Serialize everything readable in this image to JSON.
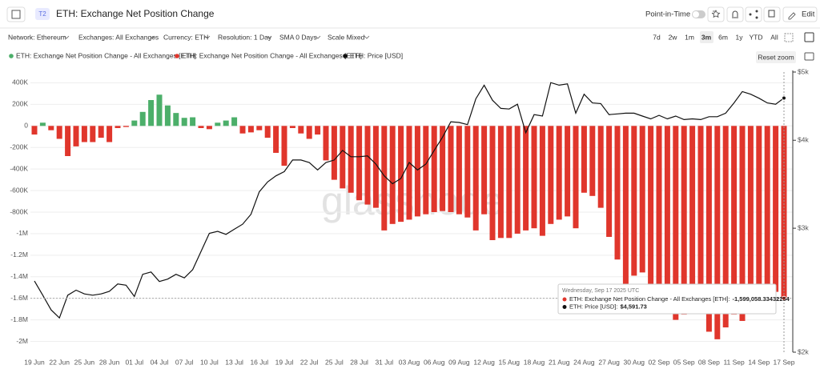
{
  "header": {
    "badge": "T2",
    "title": "ETH: Exchange Net Position Change",
    "point_in_time": "Point-in-Time",
    "edit": "Edit"
  },
  "filters": [
    "Network: Ethereum",
    "Exchanges: All Exchanges",
    "Currency: ETH",
    "Resolution: 1 Day",
    "SMA 0 Days",
    "Scale Mixed"
  ],
  "ranges": [
    "7d",
    "2w",
    "1m",
    "3m",
    "6m",
    "1y",
    "YTD",
    "All"
  ],
  "reset_zoom": "Reset zoom",
  "chart_data": {
    "type": "bar",
    "watermark": "glassnode",
    "categories": [
      "19 Jun",
      null,
      null,
      "22 Jun",
      null,
      null,
      "25 Jun",
      null,
      null,
      "28 Jun",
      null,
      null,
      "01 Jul",
      null,
      null,
      "04 Jul",
      null,
      null,
      "07 Jul",
      null,
      null,
      "10 Jul",
      null,
      null,
      "13 Jul",
      null,
      null,
      "16 Jul",
      null,
      null,
      "19 Jul",
      null,
      null,
      "22 Jul",
      null,
      null,
      "25 Jul",
      null,
      null,
      "28 Jul",
      null,
      null,
      "31 Jul",
      null,
      null,
      "03 Aug",
      null,
      null,
      "06 Aug",
      null,
      null,
      "09 Aug",
      null,
      null,
      "12 Aug",
      null,
      null,
      "15 Aug",
      null,
      null,
      "18 Aug",
      null,
      null,
      "21 Aug",
      null,
      null,
      "24 Aug",
      null,
      null,
      "27 Aug",
      null,
      null,
      "30 Aug",
      null,
      null,
      "02 Sep",
      null,
      null,
      "05 Sep",
      null,
      null,
      "08 Sep",
      null,
      null,
      "11 Sep",
      null,
      null,
      "14 Sep",
      null,
      null,
      "17 Sep"
    ],
    "series": [
      {
        "name": "ETH: Exchange Net Position Change - All Exchanges [ETH]",
        "type": "bar",
        "color": "#4caf6a",
        "values": [
          null,
          30000,
          null,
          null,
          null,
          null,
          null,
          null,
          null,
          null,
          null,
          null,
          50000,
          130000,
          240000,
          290000,
          190000,
          120000,
          75000,
          80000,
          null,
          null,
          30000,
          50000,
          80000,
          null,
          null,
          null,
          null,
          null,
          null,
          null,
          null,
          null,
          null,
          null,
          null,
          null,
          null,
          null,
          null,
          null,
          null,
          null,
          null,
          null,
          null,
          null,
          null,
          null,
          null,
          null,
          null,
          null,
          null,
          null,
          null,
          null,
          null,
          null,
          null,
          null,
          null,
          null,
          null,
          null,
          null,
          null,
          null,
          null,
          null,
          null,
          null,
          null,
          null,
          null,
          null,
          null,
          null,
          null,
          null,
          null,
          null,
          null,
          null,
          null,
          null,
          null,
          null,
          null,
          null
        ]
      },
      {
        "name": "ETH: Exchange Net Position Change - All Exchanges [ETH]",
        "type": "bar",
        "color": "#e0362c",
        "values": [
          -80000,
          null,
          -40000,
          -120000,
          -280000,
          -190000,
          -150000,
          -150000,
          -110000,
          -150000,
          -20000,
          -10000,
          null,
          null,
          null,
          null,
          null,
          null,
          null,
          null,
          -20000,
          -30000,
          null,
          null,
          null,
          -70000,
          -60000,
          -40000,
          -110000,
          -250000,
          -370000,
          -20000,
          -70000,
          -120000,
          -80000,
          -320000,
          -500000,
          -580000,
          -620000,
          -690000,
          -730000,
          -760000,
          -970000,
          -910000,
          -890000,
          -870000,
          -840000,
          -820000,
          -800000,
          -790000,
          -800000,
          -820000,
          -850000,
          -970000,
          -820000,
          -1060000,
          -1040000,
          -1040000,
          -1000000,
          -970000,
          -950000,
          -1020000,
          -910000,
          -870000,
          -840000,
          -950000,
          -620000,
          -650000,
          -760000,
          -1030000,
          -1240000,
          -1470000,
          -1390000,
          -1360000,
          -1470000,
          -1480000,
          -1500000,
          -1800000,
          -1750000,
          -1730000,
          -1740000,
          -1910000,
          -1980000,
          -1870000,
          -1750000,
          -1810000,
          -1690000,
          -1580000,
          -1540000,
          -1540000,
          -1599058.33432254
        ]
      },
      {
        "name": "ETH: Price [USD]",
        "type": "line",
        "axis": "y2",
        "color": "#111111",
        "values": [
          2524,
          2410,
          2297,
          2237,
          2410,
          2450,
          2420,
          2410,
          2420,
          2440,
          2500,
          2490,
          2400,
          2580,
          2600,
          2520,
          2540,
          2580,
          2550,
          2620,
          2780,
          2950,
          2970,
          2940,
          2990,
          3040,
          3140,
          3380,
          3490,
          3560,
          3610,
          3750,
          3750,
          3720,
          3630,
          3720,
          3750,
          3870,
          3790,
          3790,
          3800,
          3700,
          3560,
          3470,
          3530,
          3720,
          3630,
          3700,
          3870,
          4040,
          4250,
          4240,
          4210,
          4580,
          4790,
          4560,
          4440,
          4430,
          4500,
          4100,
          4350,
          4330,
          4830,
          4790,
          4810,
          4370,
          4650,
          4520,
          4510,
          4350,
          4360,
          4370,
          4370,
          4330,
          4290,
          4340,
          4290,
          4330,
          4280,
          4290,
          4280,
          4320,
          4320,
          4370,
          4520,
          4690,
          4650,
          4590,
          4520,
          4500,
          4591.73
        ]
      }
    ],
    "ylim": [
      -2100000,
      500000
    ],
    "yticks": [
      {
        "value": 400000,
        "label": "400K"
      },
      {
        "value": 200000,
        "label": "200K"
      },
      0,
      {
        "value": -200000,
        "label": "-200K"
      },
      {
        "value": -400000,
        "label": "-400K"
      },
      {
        "value": -600000,
        "label": "-600K"
      },
      {
        "value": -800000,
        "label": "-800K"
      },
      {
        "value": -1000000,
        "label": "-1M"
      },
      {
        "value": -1200000,
        "label": "-1.2M"
      },
      {
        "value": -1400000,
        "label": "-1.4M"
      },
      {
        "value": -1600000,
        "label": "-1.6M"
      },
      {
        "value": -1800000,
        "label": "-1.8M"
      },
      {
        "value": -2000000,
        "label": "-2M"
      }
    ],
    "y2lim": [
      2000,
      5000
    ],
    "y2ticks": [
      {
        "value": 5000,
        "label": "$5k"
      },
      {
        "value": 4000,
        "label": "$4k"
      },
      {
        "value": 3000,
        "label": "$3k"
      },
      {
        "value": 2000,
        "label": "$2k"
      }
    ],
    "y2scale": "log",
    "grid": true,
    "tooltip": {
      "title": "Wednesday, Sep 17 2025 UTC",
      "items": [
        {
          "label": "ETH: Exchange Net Position Change - All Exchanges [ETH]:",
          "value_label": "-1,599,058.33432254"
        },
        {
          "label": "ETH: Price [USD]:",
          "value_label": "$4,591.73"
        }
      ]
    }
  }
}
